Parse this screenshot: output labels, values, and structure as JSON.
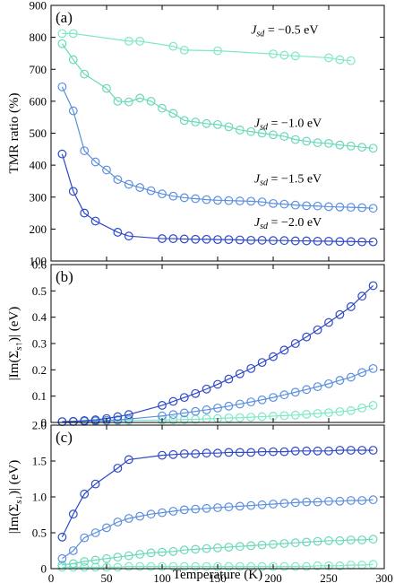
{
  "chart_data": [
    {
      "type": "line",
      "panel_label": "(a)",
      "ylabel": "TMR ratio (%)",
      "xlim": [
        0,
        300
      ],
      "ylim": [
        100,
        900
      ],
      "yticks": [
        100,
        200,
        300,
        400,
        500,
        600,
        700,
        800,
        900
      ],
      "grid": false,
      "series": [
        {
          "name": "J_sd = −0.5 eV",
          "label_prefix": "J",
          "label_sub": "sd",
          "label_suffix": " = −0.5 eV",
          "color": "#7de8c8",
          "x": [
            10,
            20,
            70,
            80,
            110,
            120,
            150,
            200,
            210,
            220,
            250,
            260,
            270
          ],
          "y": [
            812,
            812,
            788,
            788,
            772,
            760,
            758,
            748,
            744,
            742,
            736,
            730,
            727
          ]
        },
        {
          "name": "J_sd = −1.0 eV",
          "label_prefix": "J",
          "label_sub": "sd",
          "label_suffix": " = −1.0 eV",
          "color": "#6ad8ba",
          "x": [
            10,
            20,
            30,
            50,
            60,
            70,
            80,
            90,
            100,
            110,
            120,
            130,
            140,
            150,
            160,
            170,
            180,
            190,
            200,
            210,
            220,
            230,
            240,
            250,
            260,
            270,
            280,
            290
          ],
          "y": [
            780,
            730,
            685,
            640,
            600,
            598,
            610,
            600,
            578,
            562,
            540,
            535,
            530,
            527,
            520,
            510,
            505,
            500,
            495,
            490,
            480,
            475,
            470,
            468,
            463,
            460,
            456,
            453
          ]
        },
        {
          "name": "J_sd = −1.5 eV",
          "label_prefix": "J",
          "label_sub": "sd",
          "label_suffix": " = −1.5 eV",
          "color": "#5b8fe0",
          "x": [
            10,
            20,
            30,
            40,
            50,
            60,
            70,
            80,
            90,
            100,
            110,
            120,
            130,
            140,
            150,
            160,
            170,
            180,
            190,
            200,
            210,
            220,
            230,
            240,
            250,
            260,
            270,
            280,
            290
          ],
          "y": [
            645,
            570,
            445,
            410,
            385,
            355,
            340,
            330,
            320,
            310,
            303,
            298,
            295,
            292,
            290,
            289,
            288,
            287,
            285,
            280,
            278,
            275,
            273,
            272,
            270,
            269,
            268,
            267,
            265
          ]
        },
        {
          "name": "J_sd = −2.0 eV",
          "label_prefix": "J",
          "label_sub": "sd",
          "label_suffix": " = −2.0 eV",
          "color": "#2e49c9",
          "x": [
            10,
            20,
            30,
            40,
            60,
            70,
            100,
            110,
            120,
            130,
            140,
            150,
            160,
            170,
            180,
            190,
            200,
            210,
            220,
            230,
            240,
            250,
            260,
            270,
            280,
            290
          ],
          "y": [
            435,
            318,
            250,
            225,
            190,
            178,
            170,
            170,
            169,
            168,
            168,
            167,
            167,
            166,
            165,
            165,
            164,
            164,
            163,
            163,
            162,
            162,
            161,
            161,
            160,
            160
          ]
        }
      ]
    },
    {
      "type": "line",
      "panel_label": "(b)",
      "ylabel_prefix": "|Im(Σ",
      "ylabel_sub": "s↑",
      "ylabel_suffix": ")| (eV)",
      "xlim": [
        0,
        300
      ],
      "ylim": [
        0,
        0.6
      ],
      "yticks": [
        0,
        0.1,
        0.2,
        0.3,
        0.4,
        0.5,
        0.6
      ],
      "grid": false,
      "series": [
        {
          "color": "#7de8c8",
          "x": [
            10,
            20,
            30,
            40,
            50,
            60,
            70,
            100,
            110,
            120,
            130,
            140,
            150,
            160,
            170,
            180,
            190,
            200,
            210,
            220,
            230,
            240,
            250,
            260,
            270,
            280,
            290
          ],
          "y": [
            0.003,
            0.003,
            0.004,
            0.005,
            0.006,
            0.007,
            0.008,
            0.009,
            0.01,
            0.011,
            0.012,
            0.014,
            0.015,
            0.017,
            0.018,
            0.02,
            0.022,
            0.024,
            0.026,
            0.028,
            0.031,
            0.034,
            0.037,
            0.041,
            0.045,
            0.055,
            0.065
          ]
        },
        {
          "color": "#5b8fe0",
          "x": [
            10,
            20,
            30,
            40,
            50,
            60,
            70,
            100,
            110,
            120,
            130,
            140,
            150,
            160,
            170,
            180,
            190,
            200,
            210,
            220,
            230,
            240,
            250,
            260,
            270,
            280,
            290
          ],
          "y": [
            0.003,
            0.004,
            0.005,
            0.006,
            0.008,
            0.01,
            0.013,
            0.025,
            0.03,
            0.036,
            0.042,
            0.048,
            0.055,
            0.062,
            0.07,
            0.078,
            0.086,
            0.095,
            0.105,
            0.115,
            0.125,
            0.136,
            0.147,
            0.16,
            0.172,
            0.19,
            0.205
          ]
        },
        {
          "color": "#2e49c9",
          "x": [
            10,
            20,
            30,
            40,
            50,
            60,
            70,
            100,
            110,
            120,
            130,
            140,
            150,
            160,
            170,
            180,
            190,
            200,
            210,
            220,
            230,
            240,
            250,
            260,
            270,
            280,
            290
          ],
          "y": [
            0.003,
            0.004,
            0.007,
            0.01,
            0.015,
            0.022,
            0.03,
            0.065,
            0.08,
            0.095,
            0.11,
            0.127,
            0.145,
            0.165,
            0.185,
            0.205,
            0.228,
            0.25,
            0.275,
            0.3,
            0.325,
            0.352,
            0.38,
            0.41,
            0.44,
            0.48,
            0.52
          ]
        }
      ]
    },
    {
      "type": "line",
      "panel_label": "(c)",
      "ylabel_prefix": "|Im(Σ",
      "ylabel_sub": "s↓",
      "ylabel_suffix": ")| (eV)",
      "xlabel": "Temperature (K)",
      "xlim": [
        0,
        300
      ],
      "xticks": [
        0,
        50,
        100,
        150,
        200,
        250,
        300
      ],
      "ylim": [
        0,
        2.0
      ],
      "yticks": [
        0,
        0.5,
        1.0,
        1.5,
        2.0
      ],
      "ytick_labels": [
        "0",
        "0.5",
        "1.0",
        "1.5",
        "2.0"
      ],
      "grid": false,
      "series": [
        {
          "color": "#7de8c8",
          "x": [
            10,
            20,
            30,
            40,
            50,
            60,
            70,
            80,
            90,
            100,
            110,
            120,
            130,
            140,
            150,
            160,
            170,
            180,
            190,
            200,
            210,
            220,
            230,
            240,
            250,
            260,
            270,
            280,
            290
          ],
          "y": [
            0.02,
            0.02,
            0.02,
            0.02,
            0.02,
            0.02,
            0.03,
            0.03,
            0.03,
            0.03,
            0.03,
            0.03,
            0.03,
            0.03,
            0.03,
            0.03,
            0.03,
            0.03,
            0.03,
            0.03,
            0.03,
            0.03,
            0.03,
            0.04,
            0.04,
            0.04,
            0.05,
            0.05,
            0.06
          ]
        },
        {
          "color": "#6ad8ba",
          "x": [
            10,
            20,
            30,
            40,
            50,
            60,
            70,
            80,
            90,
            100,
            110,
            120,
            130,
            140,
            150,
            160,
            170,
            180,
            190,
            200,
            210,
            220,
            230,
            240,
            250,
            260,
            270,
            280,
            290
          ],
          "y": [
            0.05,
            0.07,
            0.1,
            0.12,
            0.14,
            0.16,
            0.18,
            0.2,
            0.22,
            0.23,
            0.24,
            0.26,
            0.27,
            0.28,
            0.29,
            0.3,
            0.31,
            0.32,
            0.33,
            0.34,
            0.35,
            0.36,
            0.37,
            0.38,
            0.39,
            0.39,
            0.4,
            0.4,
            0.41
          ]
        },
        {
          "color": "#5b8fe0",
          "x": [
            10,
            20,
            30,
            40,
            50,
            60,
            70,
            80,
            90,
            100,
            110,
            120,
            130,
            140,
            150,
            160,
            170,
            180,
            190,
            200,
            210,
            220,
            230,
            240,
            250,
            260,
            270,
            280,
            290
          ],
          "y": [
            0.14,
            0.25,
            0.43,
            0.5,
            0.57,
            0.65,
            0.7,
            0.73,
            0.76,
            0.78,
            0.8,
            0.82,
            0.83,
            0.84,
            0.85,
            0.86,
            0.87,
            0.88,
            0.89,
            0.9,
            0.91,
            0.92,
            0.93,
            0.93,
            0.94,
            0.94,
            0.95,
            0.95,
            0.96
          ]
        },
        {
          "color": "#2e49c9",
          "x": [
            10,
            20,
            30,
            40,
            60,
            70,
            100,
            110,
            120,
            130,
            140,
            150,
            160,
            170,
            180,
            190,
            200,
            210,
            220,
            230,
            240,
            250,
            260,
            270,
            280,
            290
          ],
          "y": [
            0.44,
            0.76,
            1.04,
            1.18,
            1.4,
            1.52,
            1.58,
            1.59,
            1.6,
            1.6,
            1.61,
            1.61,
            1.62,
            1.62,
            1.62,
            1.63,
            1.63,
            1.63,
            1.64,
            1.64,
            1.64,
            1.64,
            1.65,
            1.65,
            1.65,
            1.65
          ]
        }
      ]
    }
  ]
}
